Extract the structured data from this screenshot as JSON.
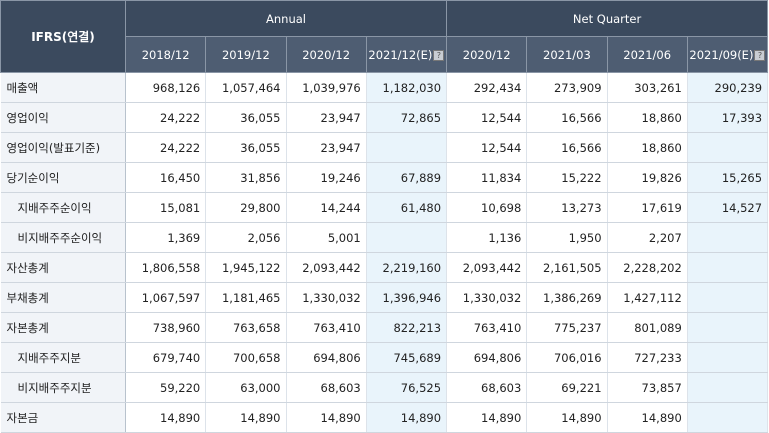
{
  "table": {
    "corner_label": "IFRS(연결)",
    "groups": {
      "annual": "Annual",
      "quarter": "Net Quarter"
    },
    "columns": [
      "2018/12",
      "2019/12",
      "2020/12",
      "2021/12(E)",
      "2020/12",
      "2021/03",
      "2021/06",
      "2021/09(E)"
    ],
    "estimate_marker": "?",
    "estimate_columns": [
      3,
      7
    ],
    "rows": [
      {
        "label": "매출액",
        "indent": false,
        "values": [
          "968,126",
          "1,057,464",
          "1,039,976",
          "1,182,030",
          "292,434",
          "273,909",
          "303,261",
          "290,239"
        ]
      },
      {
        "label": "영업이익",
        "indent": false,
        "values": [
          "24,222",
          "36,055",
          "23,947",
          "72,865",
          "12,544",
          "16,566",
          "18,860",
          "17,393"
        ]
      },
      {
        "label": "영업이익(발표기준)",
        "indent": false,
        "values": [
          "24,222",
          "36,055",
          "23,947",
          "",
          "12,544",
          "16,566",
          "18,860",
          ""
        ]
      },
      {
        "label": "당기순이익",
        "indent": false,
        "values": [
          "16,450",
          "31,856",
          "19,246",
          "67,889",
          "11,834",
          "15,222",
          "19,826",
          "15,265"
        ]
      },
      {
        "label": "지배주주순이익",
        "indent": true,
        "values": [
          "15,081",
          "29,800",
          "14,244",
          "61,480",
          "10,698",
          "13,273",
          "17,619",
          "14,527"
        ]
      },
      {
        "label": "비지배주주순이익",
        "indent": true,
        "values": [
          "1,369",
          "2,056",
          "5,001",
          "",
          "1,136",
          "1,950",
          "2,207",
          ""
        ]
      },
      {
        "label": "자산총계",
        "indent": false,
        "values": [
          "1,806,558",
          "1,945,122",
          "2,093,442",
          "2,219,160",
          "2,093,442",
          "2,161,505",
          "2,228,202",
          ""
        ]
      },
      {
        "label": "부채총계",
        "indent": false,
        "values": [
          "1,067,597",
          "1,181,465",
          "1,330,032",
          "1,396,946",
          "1,330,032",
          "1,386,269",
          "1,427,112",
          ""
        ]
      },
      {
        "label": "자본총계",
        "indent": false,
        "values": [
          "738,960",
          "763,658",
          "763,410",
          "822,213",
          "763,410",
          "775,237",
          "801,089",
          ""
        ]
      },
      {
        "label": "지배주주지분",
        "indent": true,
        "values": [
          "679,740",
          "700,658",
          "694,806",
          "745,689",
          "694,806",
          "706,016",
          "727,233",
          ""
        ]
      },
      {
        "label": "비지배주주지분",
        "indent": true,
        "values": [
          "59,220",
          "63,000",
          "68,603",
          "76,525",
          "68,603",
          "69,221",
          "73,857",
          ""
        ]
      },
      {
        "label": "자본금",
        "indent": false,
        "values": [
          "14,890",
          "14,890",
          "14,890",
          "14,890",
          "14,890",
          "14,890",
          "14,890",
          ""
        ]
      }
    ]
  }
}
